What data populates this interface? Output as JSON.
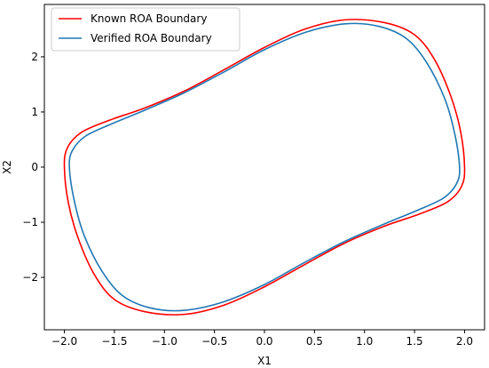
{
  "chart_data": {
    "type": "line",
    "title": "",
    "xlabel": "X1",
    "ylabel": "X2",
    "xlim": [
      -2.2,
      2.2
    ],
    "ylim": [
      -2.95,
      2.95
    ],
    "xticks": [
      -2.0,
      -1.5,
      -1.0,
      -0.5,
      0.0,
      0.5,
      1.0,
      1.5,
      2.0
    ],
    "xtick_labels": [
      "−2.0",
      "−1.5",
      "−1.0",
      "−0.5",
      "0.0",
      "0.5",
      "1.0",
      "1.5",
      "2.0"
    ],
    "yticks": [
      -2,
      -1,
      0,
      1,
      2
    ],
    "ytick_labels": [
      "−2",
      "−1",
      "0",
      "1",
      "2"
    ],
    "grid": false,
    "legend_position": "upper-left",
    "series": [
      {
        "name": "Known ROA Boundary",
        "color": "#ff0000",
        "x": [
          2.0,
          1.96,
          1.86,
          1.7,
          1.5,
          1.2,
          0.8,
          0.4,
          0.0,
          -0.4,
          -0.8,
          -1.2,
          -1.55,
          -1.83,
          -1.97,
          -2.0,
          -1.96,
          -1.86,
          -1.7,
          -1.5,
          -1.2,
          -0.8,
          -0.4,
          0.0,
          0.4,
          0.8,
          1.2,
          1.55,
          1.83,
          1.97,
          2.0
        ],
        "y": [
          0.0,
          0.65,
          1.3,
          1.95,
          2.4,
          2.62,
          2.67,
          2.5,
          2.17,
          1.77,
          1.38,
          1.07,
          0.85,
          0.63,
          0.35,
          0.0,
          -0.65,
          -1.3,
          -1.95,
          -2.4,
          -2.62,
          -2.67,
          -2.5,
          -2.17,
          -1.77,
          -1.38,
          -1.07,
          -0.85,
          -0.63,
          -0.35,
          0.0
        ]
      },
      {
        "name": "Verified ROA Boundary",
        "color": "#1f77b4",
        "x": [
          1.95,
          1.9,
          1.8,
          1.62,
          1.42,
          1.15,
          0.82,
          0.42,
          0.0,
          -0.4,
          -0.8,
          -1.2,
          -1.52,
          -1.79,
          -1.92,
          -1.95,
          -1.9,
          -1.8,
          -1.62,
          -1.42,
          -1.15,
          -0.82,
          -0.42,
          0.0,
          0.4,
          0.8,
          1.2,
          1.52,
          1.79,
          1.92,
          1.95
        ],
        "y": [
          0.0,
          0.62,
          1.25,
          1.9,
          2.33,
          2.55,
          2.6,
          2.45,
          2.13,
          1.73,
          1.35,
          1.03,
          0.79,
          0.56,
          0.3,
          0.0,
          -0.62,
          -1.25,
          -1.9,
          -2.33,
          -2.55,
          -2.6,
          -2.45,
          -2.13,
          -1.73,
          -1.35,
          -1.03,
          -0.79,
          -0.56,
          -0.3,
          0.0
        ]
      }
    ]
  }
}
